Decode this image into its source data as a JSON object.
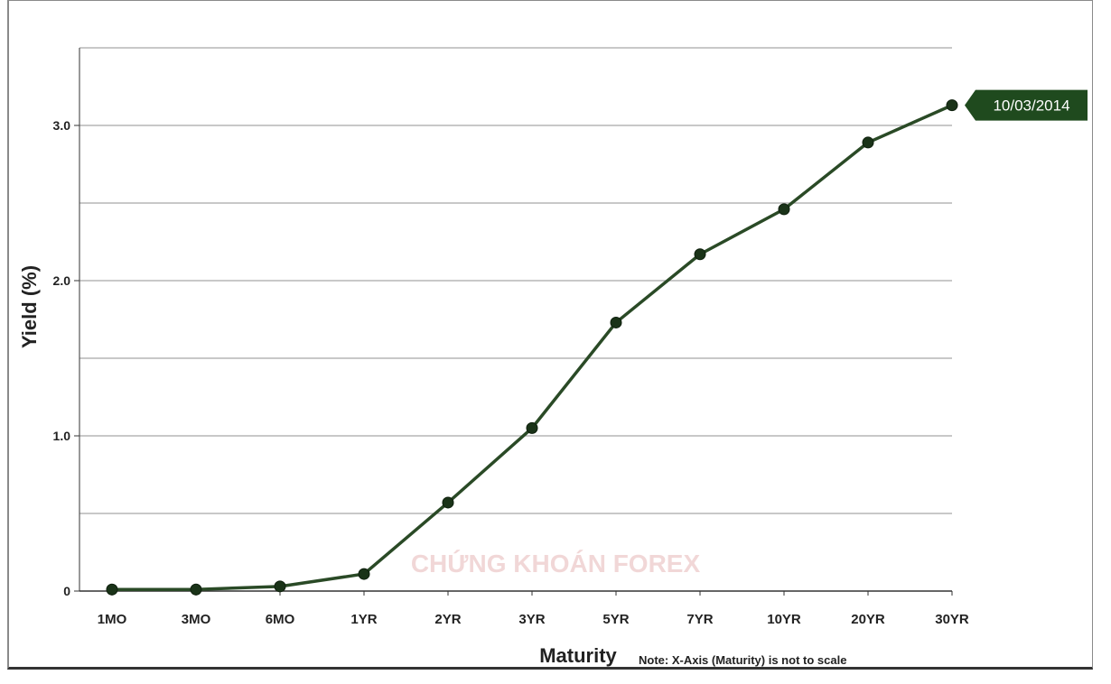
{
  "chart_data": {
    "type": "line",
    "categories": [
      "1MO",
      "3MO",
      "6MO",
      "1YR",
      "2YR",
      "3YR",
      "5YR",
      "7YR",
      "10YR",
      "20YR",
      "30YR"
    ],
    "series": [
      {
        "name": "10/03/2014",
        "values": [
          0.01,
          0.01,
          0.03,
          0.11,
          0.57,
          1.05,
          1.73,
          2.17,
          2.46,
          2.89,
          3.13
        ]
      }
    ],
    "xlabel": "Maturity",
    "ylabel": "Yield (%)",
    "ylim": [
      0,
      3.5
    ],
    "yticks": [
      {
        "value": 0,
        "label": "0"
      },
      {
        "value": 1,
        "label": "1.0"
      },
      {
        "value": 2,
        "label": "2.0"
      },
      {
        "value": 3,
        "label": "3.0"
      }
    ],
    "gridlines": [
      0.5,
      1,
      1.5,
      2,
      2.5,
      3,
      3.5
    ],
    "grid": true,
    "note": "Note: X-Axis (Maturity) is not to scale",
    "end_label": "10/03/2014",
    "watermark": "CHỨNG KHOÁN FOREX",
    "colors": {
      "line": "#2a4a26",
      "marker": "#1a3318",
      "tag": "#1f4a1e",
      "grid": "#a8a8a8"
    }
  }
}
